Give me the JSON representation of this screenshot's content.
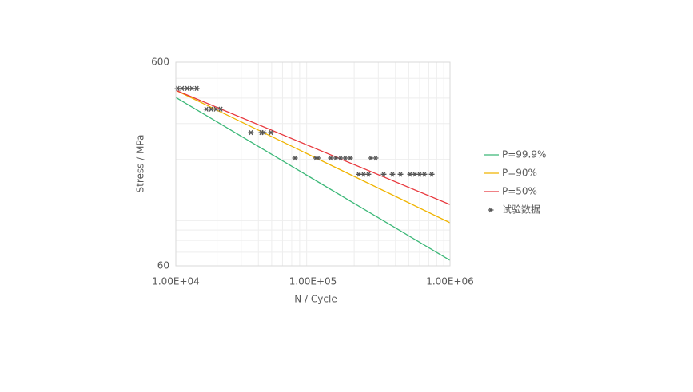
{
  "chart_data": {
    "type": "line",
    "log_x": true,
    "log_y": true,
    "grid": true,
    "x_label": "N / Cycle",
    "y_label": "Stress / MPa",
    "xlim": [
      10000,
      1000000
    ],
    "ylim": [
      60,
      600
    ],
    "xticks": [
      {
        "value": 10000,
        "label": "1.00E+04"
      },
      {
        "value": 100000,
        "label": "1.00E+05"
      },
      {
        "value": 1000000,
        "label": "1.00E+06"
      }
    ],
    "yticks": [
      60,
      600
    ],
    "x_minor_grid": [
      20000,
      30000,
      40000,
      50000,
      60000,
      70000,
      80000,
      90000,
      200000,
      300000,
      400000,
      500000,
      600000,
      700000,
      800000,
      900000
    ],
    "y_minor_grid": [
      70,
      80,
      90,
      100,
      200,
      300,
      400,
      500
    ],
    "legend": "right",
    "series": [
      {
        "name": "P=99.9%",
        "color": "#3cb878",
        "x": [
          10000,
          1000000
        ],
        "values": [
          403,
          63.9
        ]
      },
      {
        "name": "P=90%",
        "color": "#f0b400",
        "x": [
          10000,
          1000000
        ],
        "values": [
          437,
          97.7
        ]
      },
      {
        "name": "P=50%",
        "color": "#e8383d",
        "x": [
          10000,
          1000000
        ],
        "values": [
          437,
          120
        ]
      },
      {
        "name": "试验数据",
        "color": "#555555",
        "type": "scatter",
        "x": [
          10300,
          11100,
          12100,
          13100,
          14200,
          16700,
          18100,
          19600,
          21200,
          35300,
          42100,
          43800,
          49400,
          74000,
          105000,
          109000,
          135000,
          147000,
          159000,
          172000,
          187000,
          265000,
          287000,
          216000,
          234000,
          254000,
          328000,
          380000,
          435000,
          511000,
          554000,
          600000,
          650000,
          735000
        ],
        "values": [
          446,
          446,
          446,
          446,
          446,
          353,
          353,
          353,
          353,
          271,
          271,
          271,
          271,
          203,
          203,
          203,
          203,
          203,
          203,
          203,
          203,
          203,
          203,
          169,
          169,
          169,
          169,
          169,
          169,
          169,
          169,
          169,
          169,
          169
        ]
      }
    ]
  }
}
